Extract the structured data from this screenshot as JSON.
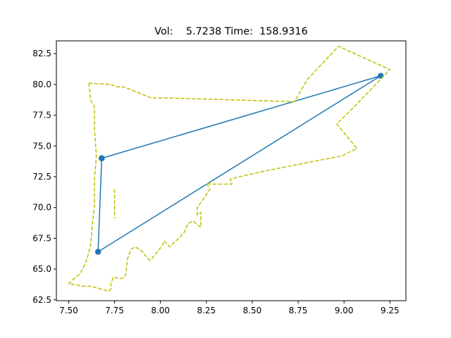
{
  "chart_data": {
    "type": "line",
    "title": "Vol:    5.7238 Time:  158.9316",
    "xlabel": "",
    "ylabel": "",
    "xlim": [
      7.433,
      9.337
    ],
    "ylim": [
      62.43,
      83.54
    ],
    "grid": false,
    "x_ticks": [
      7.5,
      7.75,
      8.0,
      8.25,
      8.5,
      8.75,
      9.0,
      9.25
    ],
    "x_tick_labels": [
      "7.50",
      "7.75",
      "8.00",
      "8.25",
      "8.50",
      "8.75",
      "9.00",
      "9.25"
    ],
    "y_ticks": [
      62.5,
      65.0,
      67.5,
      70.0,
      72.5,
      75.0,
      77.5,
      80.0,
      82.5
    ],
    "y_tick_labels": [
      "62.5",
      "65.0",
      "67.5",
      "70.0",
      "72.5",
      "75.0",
      "77.5",
      "80.0",
      "82.5"
    ],
    "series": [
      {
        "style": "solid-markers",
        "color": "#1f77b4",
        "x": [
          7.68,
          9.2,
          7.66,
          7.68
        ],
        "y": [
          74.0,
          80.7,
          66.4,
          74.0
        ]
      },
      {
        "style": "dashed",
        "color": "#bfbf00",
        "x": [
          7.61,
          7.62,
          7.64,
          7.64,
          7.65,
          7.65,
          7.64,
          7.64,
          7.63,
          7.62,
          7.6,
          7.58,
          7.56,
          7.52,
          7.5,
          7.55,
          7.57,
          7.62,
          7.72,
          7.73,
          7.73,
          7.74,
          7.74,
          7.76,
          7.78,
          7.8,
          7.81,
          7.82,
          7.84,
          7.86,
          7.89,
          7.94,
          7.95,
          8.01,
          8.02,
          8.05,
          8.07,
          8.1,
          8.13,
          8.15,
          8.18,
          8.2,
          8.22,
          8.22,
          8.2,
          8.2,
          8.23,
          8.27,
          8.25,
          8.27,
          8.39,
          8.38,
          8.4,
          8.55,
          8.58,
          8.99,
          9.07,
          8.96,
          9.05,
          9.25,
          8.97,
          8.8,
          8.73,
          8.03,
          7.95,
          7.8,
          7.76,
          7.73,
          7.61
        ],
        "y": [
          80.1,
          78.7,
          78.2,
          76.5,
          74.4,
          74.0,
          72.3,
          70.0,
          68.8,
          67.0,
          65.8,
          65.1,
          64.6,
          64.1,
          63.8,
          63.7,
          63.6,
          63.6,
          63.2,
          63.4,
          63.9,
          64.2,
          64.3,
          64.3,
          64.2,
          64.3,
          64.5,
          65.8,
          66.6,
          66.8,
          66.6,
          65.7,
          65.8,
          66.9,
          67.3,
          66.8,
          67.1,
          67.5,
          68.0,
          68.7,
          68.9,
          68.6,
          68.4,
          69.6,
          69.4,
          70.0,
          70.6,
          71.5,
          72.0,
          71.9,
          71.9,
          72.3,
          72.4,
          72.9,
          73.0,
          74.2,
          74.8,
          76.8,
          78.1,
          81.2,
          83.1,
          80.4,
          78.6,
          78.9,
          78.9,
          79.8,
          79.8,
          80.0,
          80.1
        ]
      },
      {
        "style": "dashed",
        "color": "#bfbf00",
        "x": [
          7.75,
          7.75
        ],
        "y": [
          71.5,
          69.1
        ]
      }
    ]
  }
}
